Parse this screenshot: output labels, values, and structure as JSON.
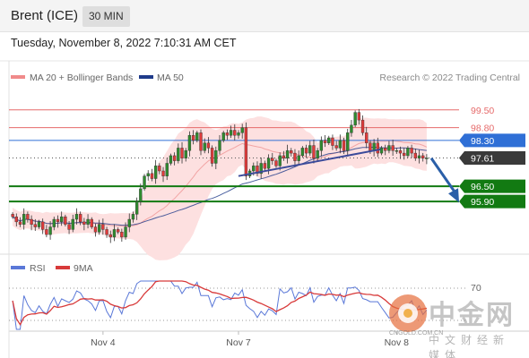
{
  "header": {
    "title": "Brent (ICE)",
    "timeframe": "30 MIN",
    "datetime": "Tuesday, November 8, 2022 7:10:31 AM CET"
  },
  "credit": "Research © 2022 Trading Central",
  "watermark": {
    "cn": "中金网",
    "en": "CNGOLD.COM.CN",
    "sub": "中文财经新媒体"
  },
  "colors": {
    "up": "#2e8b2e",
    "down": "#e03a3a",
    "resistance": "#e66a6a",
    "support": "#127a12",
    "pivot": "#2f6fd6",
    "current": "#3a3a3a",
    "ma50": "#1f3b8a",
    "band": "#fde0e0",
    "ma20": "#f2a4a4",
    "rsi": "#5a78d8",
    "rsi_ma": "#d83a3a"
  },
  "chart_data": [
    {
      "type": "candlestick",
      "legend": [
        {
          "name": "MA 20 + Bollinger Bands",
          "color": "#f08a8a"
        },
        {
          "name": "MA 50",
          "color": "#1f3b8a"
        }
      ],
      "x_ticks": [
        "Nov 4",
        "Nov 7",
        "Nov 8"
      ],
      "ylim": [
        93.9,
        100.3
      ],
      "levels": [
        {
          "value": 99.5,
          "label": "99.50",
          "kind": "resistance"
        },
        {
          "value": 98.8,
          "label": "98.80",
          "kind": "resistance"
        },
        {
          "value": 98.3,
          "label": "98.30",
          "kind": "pivot"
        },
        {
          "value": 97.61,
          "label": "97.61",
          "kind": "current"
        },
        {
          "value": 96.5,
          "label": "96.50",
          "kind": "support"
        },
        {
          "value": 95.9,
          "label": "95.90",
          "kind": "support"
        }
      ],
      "closes": [
        95.3,
        95.1,
        95.0,
        95.4,
        95.2,
        95.0,
        94.9,
        95.1,
        94.8,
        94.6,
        94.9,
        95.2,
        95.1,
        95.3,
        95.0,
        94.8,
        95.2,
        95.4,
        95.1,
        95.0,
        95.2,
        94.9,
        94.7,
        95.0,
        94.8,
        94.6,
        94.5,
        94.8,
        94.7,
        94.5,
        94.9,
        95.2,
        95.4,
        95.9,
        96.4,
        96.9,
        97.0,
        96.8,
        97.3,
        97.1,
        96.9,
        97.4,
        97.7,
        97.5,
        98.0,
        97.6,
        97.9,
        98.5,
        98.3,
        98.6,
        97.9,
        98.2,
        98.0,
        97.4,
        97.9,
        98.3,
        98.6,
        98.5,
        98.7,
        98.5,
        98.6,
        98.8,
        96.9,
        97.1,
        97.3,
        97.0,
        97.4,
        97.2,
        97.6,
        97.5,
        97.3,
        97.7,
        97.6,
        97.9,
        97.8,
        97.5,
        97.7,
        98.0,
        97.8,
        98.1,
        97.6,
        97.9,
        98.3,
        98.2,
        98.4,
        98.1,
        98.0,
        98.3,
        97.9,
        98.6,
        98.9,
        99.4,
        99.1,
        98.6,
        98.2,
        97.9,
        98.2,
        97.8,
        98.0,
        97.9,
        98.1,
        97.9,
        97.9,
        97.8,
        97.7,
        98.0,
        97.8,
        97.6,
        97.7,
        97.6,
        97.61
      ],
      "annotations": [
        {
          "type": "trendline",
          "from": [
            7.0,
            96.9
          ],
          "to": [
            9.5,
            97.95
          ],
          "color": "#3a4a9a"
        },
        {
          "type": "arrow",
          "from": [
            9.6,
            97.6
          ],
          "to": [
            10.0,
            96.0
          ],
          "color": "#2b5fa8"
        }
      ]
    },
    {
      "type": "line",
      "legend": [
        {
          "name": "RSI",
          "color": "#5a78d8"
        },
        {
          "name": "9MA",
          "color": "#d83a3a"
        }
      ],
      "levels": [
        {
          "value": 70,
          "label": "70"
        }
      ],
      "ylim": [
        0,
        100
      ]
    }
  ]
}
